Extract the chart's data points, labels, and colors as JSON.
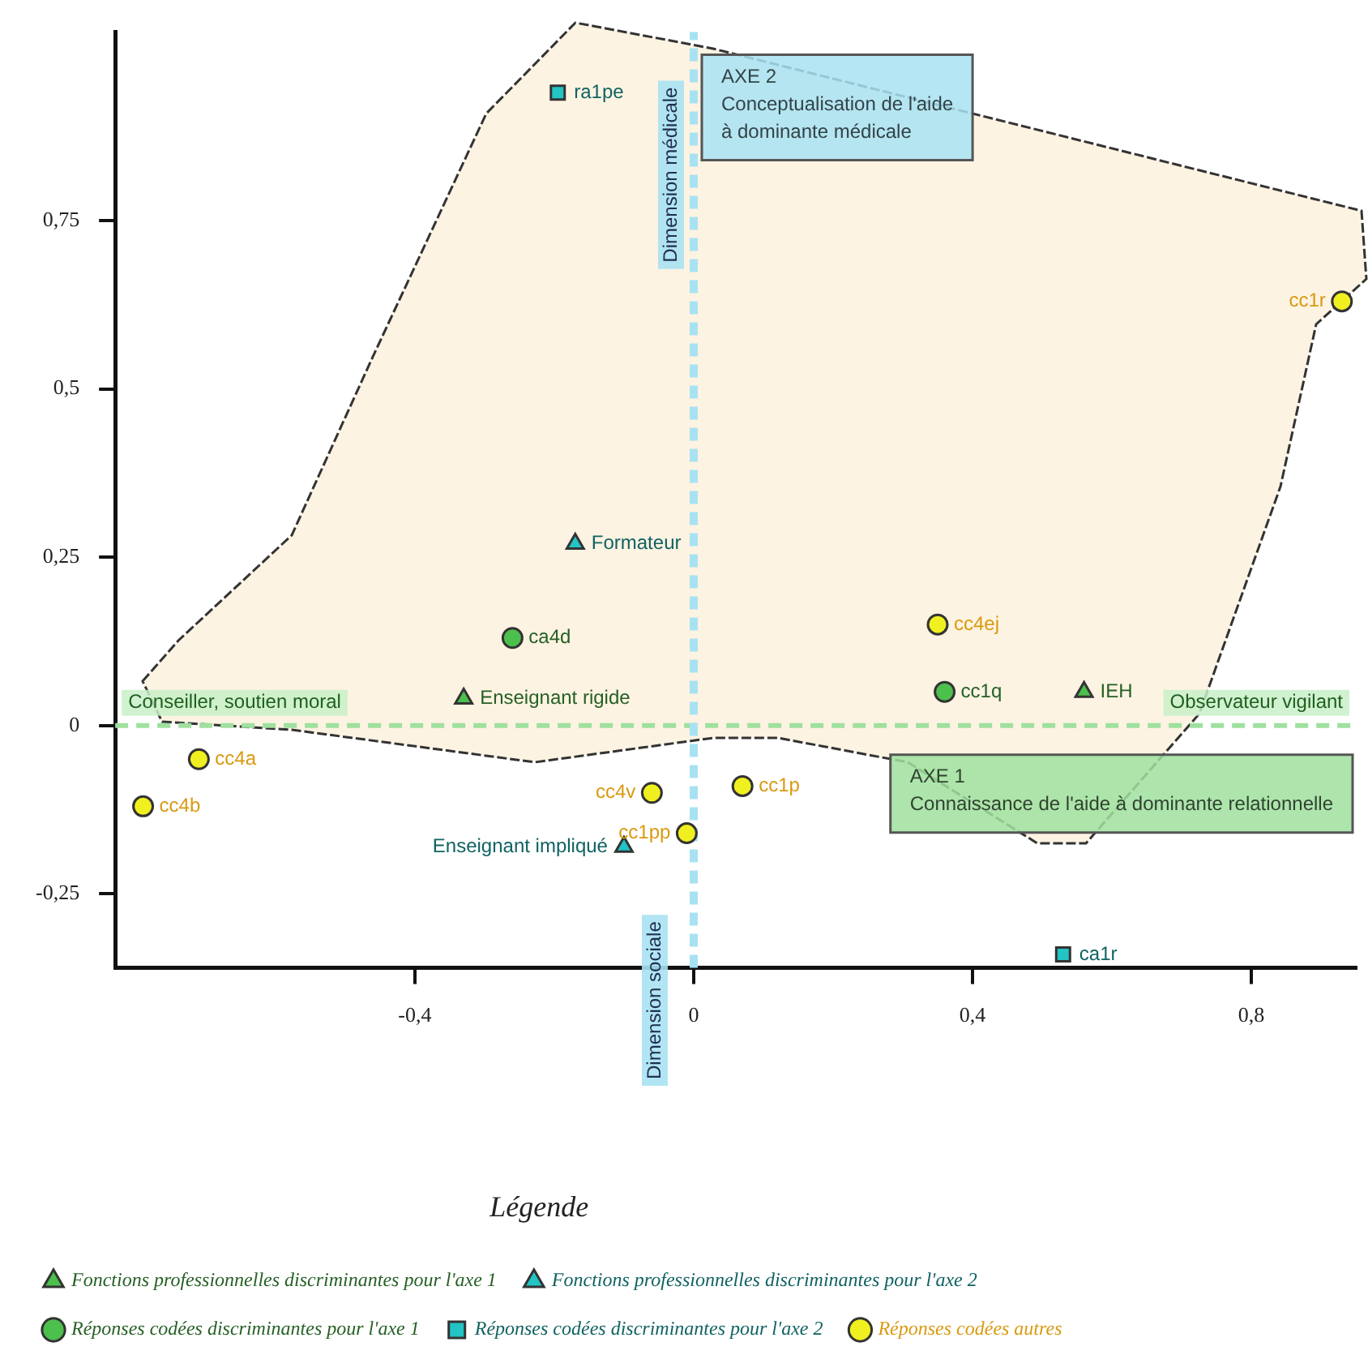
{
  "chart_data": {
    "type": "scatter",
    "xlim": [
      -0.83,
      0.95
    ],
    "ylim": [
      -0.36,
      1.03
    ],
    "xticks": [
      {
        "value": -0.4,
        "label": "-0,4"
      },
      0,
      {
        "value": 0.4,
        "label": "0,4"
      },
      {
        "value": 0.8,
        "label": "0,8"
      }
    ],
    "yticks": [
      {
        "value": -0.25,
        "label": "-0,25"
      },
      0,
      {
        "value": 0.25,
        "label": "0,25"
      },
      {
        "value": 0.5,
        "label": "0,5"
      },
      {
        "value": 0.75,
        "label": "0,75"
      }
    ],
    "grid": false,
    "legend": "bottom",
    "legend_title": "Légende",
    "series": [
      {
        "name": "Fonctions professionnelles discriminantes pour l'axe 1",
        "color": "#4cbf4c",
        "marker": "triangle",
        "x": [
          -0.33,
          0.56
        ],
        "values": [
          0.04,
          0.05
        ],
        "value_labels": [
          "Enseignant rigide",
          "IEH"
        ]
      },
      {
        "name": "Fonctions professionnelles discriminantes pour l'axe 2",
        "color": "#22c4c4",
        "marker": "triangle",
        "x": [
          -0.17,
          -0.1
        ],
        "values": [
          0.27,
          -0.18
        ],
        "value_labels": [
          "Formateur",
          "Enseignant impliqué"
        ]
      },
      {
        "name": "Réponses codées discriminantes pour l'axe 1",
        "color": "#4cbf4c",
        "marker": "circle",
        "x": [
          -0.26,
          0.36
        ],
        "values": [
          0.13,
          0.05
        ],
        "value_labels": [
          "ca4d",
          "cc1q"
        ]
      },
      {
        "name": "Réponses codées discriminantes pour l'axe 2",
        "color": "#22c4c4",
        "marker": "square",
        "x": [
          -0.195,
          0.53
        ],
        "values": [
          0.94,
          -0.34
        ],
        "value_labels": [
          "ra1pe",
          "ca1r"
        ]
      },
      {
        "name": "Réponses codées autres",
        "color": "#f0f020",
        "marker": "circle",
        "x": [
          0.93,
          -0.71,
          -0.79,
          -0.06,
          -0.01,
          0.07,
          0.35
        ],
        "values": [
          0.63,
          -0.05,
          -0.12,
          -0.1,
          -0.16,
          -0.09,
          0.15
        ],
        "value_labels": [
          "cc1r",
          "cc4a",
          "cc4b",
          "cc4v",
          "cc1pp",
          "cc1p",
          "cc4ej"
        ]
      }
    ],
    "ref_lines": [
      {
        "axis": "y",
        "value": 0,
        "color": "#9fe09f",
        "line_style": "dashed",
        "label": "AXE 1\nConnaissance de l'aide à dominante relationnelle"
      },
      {
        "axis": "x",
        "value": 0,
        "color": "#a8e2f2",
        "line_style": "dashed",
        "label": "AXE 2\nConceptualisation de l'aide\nà dominante médicale"
      }
    ],
    "annotations": [
      "Conseiller, soutien moral",
      "Observateur vigilant",
      "Dimension médicale",
      "Dimension sociale"
    ]
  }
}
